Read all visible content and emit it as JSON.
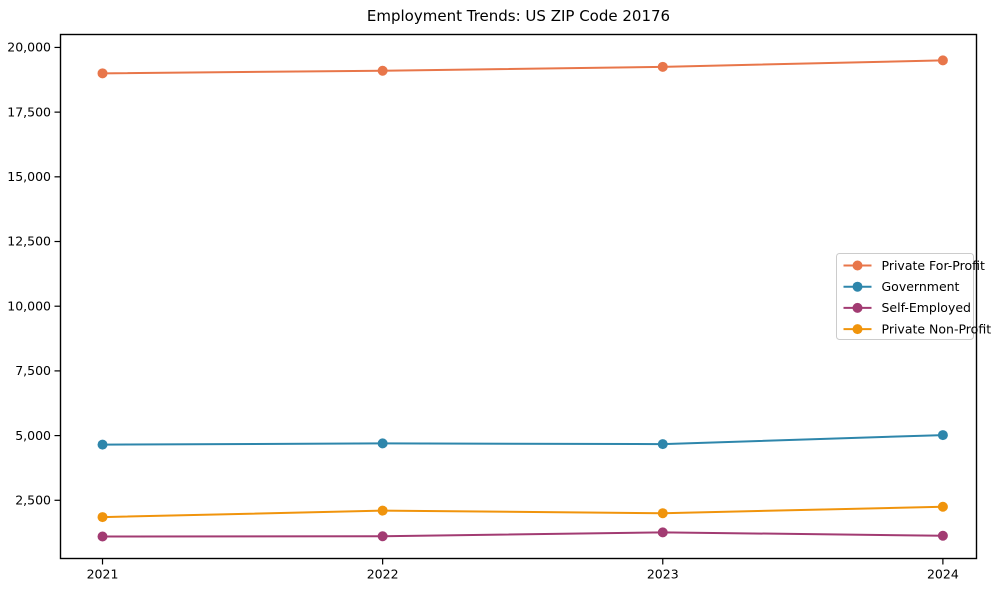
{
  "figure": {
    "background_color": "#ffffff",
    "spine_color": "#000000",
    "text_color": "#000000",
    "legend_border_color": "#cccccc",
    "legend_background_color": "#ffffff"
  },
  "chart_data": {
    "type": "line",
    "title": "Employment Trends: US ZIP Code 20176",
    "xlabel": "",
    "ylabel": "",
    "x": [
      2021,
      2022,
      2023,
      2024
    ],
    "x_tick_labels": [
      "2021",
      "2022",
      "2023",
      "2024"
    ],
    "xlim": [
      2020.85,
      2024.12
    ],
    "ylim": [
      250,
      20500
    ],
    "yticks": [
      2500,
      5000,
      7500,
      10000,
      12500,
      15000,
      17500,
      20000
    ],
    "ytick_labels": [
      "2,500",
      "5,000",
      "7,500",
      "10,000",
      "12,500",
      "15,000",
      "17,500",
      "20,000"
    ],
    "grid": false,
    "marker": "o",
    "legend_position": "middle-right",
    "series": [
      {
        "name": "Private For-Profit",
        "color": "#E8764A",
        "values": [
          19000,
          19100,
          19250,
          19500
        ]
      },
      {
        "name": "Government",
        "color": "#2E86AB",
        "values": [
          4650,
          4700,
          4670,
          5020
        ]
      },
      {
        "name": "Self-Employed",
        "color": "#A23B72",
        "values": [
          1100,
          1110,
          1260,
          1130
        ]
      },
      {
        "name": "Private Non-Profit",
        "color": "#F0940C",
        "values": [
          1850,
          2100,
          2000,
          2250
        ]
      }
    ]
  }
}
